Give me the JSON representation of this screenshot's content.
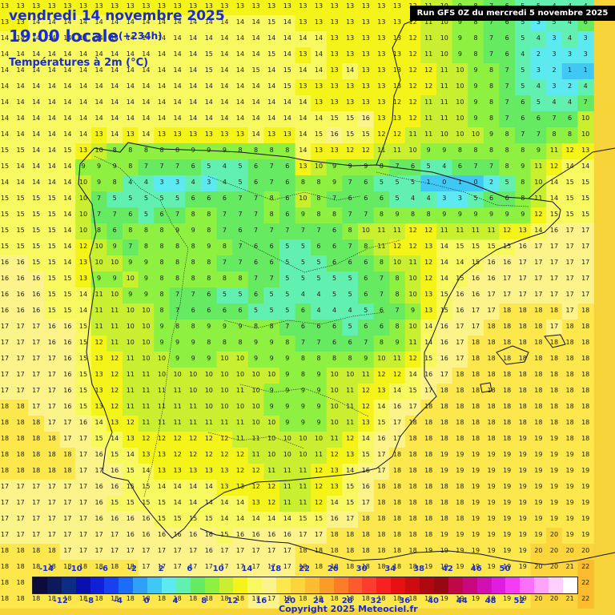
{
  "header": {
    "date": "vendredi 14 novembre 2025",
    "time": "19:00 locale",
    "lead": "(+234h)",
    "parameter": "Températures à 2m (°C)"
  },
  "run_label": "Run GFS 0Z du mercredi 5 novembre 2025",
  "credit": "Copyright 2025 Meteociel.fr",
  "units": "°C",
  "scale": {
    "upper_ticks": [
      "-14",
      "-10",
      "-6",
      "-2",
      "2",
      "6",
      "10",
      "14",
      "18",
      "22",
      "26",
      "30",
      "34",
      "38",
      "42",
      "46",
      "50"
    ],
    "lower_ticks": [
      "-12",
      "-8",
      "-4",
      "0",
      "4",
      "8",
      "12",
      "16",
      "20",
      "24",
      "28",
      "32",
      "36",
      "40",
      "44",
      "48",
      "52"
    ],
    "colors": [
      "#0c0c3c",
      "#0a1a5a",
      "#0c2c86",
      "#0a10b0",
      "#1020d8",
      "#1840f0",
      "#1c6cf8",
      "#2ea0f8",
      "#40c8f4",
      "#5ceaf0",
      "#62f0b0",
      "#66ea62",
      "#8ef040",
      "#c8f030",
      "#f4f41a",
      "#f8f860",
      "#fcf48a",
      "#fce84c",
      "#fcd43c",
      "#fcbc30",
      "#fc9c28",
      "#fc7c28",
      "#fc5c2c",
      "#fc3c2c",
      "#f82020",
      "#e81010",
      "#cc0c10",
      "#b00810",
      "#980810",
      "#c00848",
      "#c8087c",
      "#d010b0",
      "#e01ce0",
      "#f43cf4",
      "#fa70fa",
      "#fca4fc",
      "#ffd0ff",
      "#ffffff"
    ]
  },
  "temperature_grid": {
    "rows": [
      "13 13 13 13 13 13 13 13 13 13 13 13 13 13 13 13 13 13 13 13 13 13 13 13 13 13 12 11 10 9 8 7 6 5 5 4 4 4",
      "13 13 14 14 14 14 14 14 14 14 14 14 14 14 14 14 14 15 14 13 13 13 13 13 13 13 12 11 10 9 8 7 6 5 3 5 4 6",
      "14 14 14 14 14 14 14 14 14 14 14 14 14 14 14 14 14 14 14 14 14 13 13 13 13 13 12 11 10 9 8 7 6 5 4 3 4 3",
      "14 14 14 14 14 14 14 14 14 14 14 14 14 15 14 14 14 15 14 13 14 13 13 13 13 13 12 11 10 9 8 7 6 4 2 3 3 3",
      "14 14 14 14 14 14 14 14 14 14 14 14 14 15 14 14 15 14 15 14 14 13 14 13 13 13 12 12 11 10 9 8 7 5 3 2 1 1",
      "14 14 14 14 14 14 14 14 14 14 14 14 14 14 14 14 14 14 15 13 13 13 13 13 13 13 12 12 11 10 9 8 7 5 4 3 2 4",
      "14 14 14 14 14 14 14 14 14 14 14 14 14 14 14 14 14 14 14 14 13 13 13 13 13 12 12 11 11 10 9 8 7 6 5 4 4 7",
      "14 14 14 14 14 14 14 14 14 14 14 14 14 14 14 14 14 14 14 14 14 15 15 16 13 13 12 11 11 10 9 8 7 6 6 7 6 10",
      "14 14 14 14 14 14 13 14 13 14 13 13 13 13 13 13 14 13 13 14 15 16 15 15 12 12 11 11 10 10 10 9 8 7 7 8 8 10",
      "15 15 14 14 15 13 10 8 8 8 8 8 9 9 9 8 8 8 8 14 13 13 12 12 11 11 10 9 9 8 8 8 8 8 9 11 12 13",
      "15 14 14 14 14 9 9 9 8 7 7 7 6 5 4 5 6 7 6 13 10 9 9 9 8 7 6 5 4 6 7 7 8 9 11 12 14 14",
      "14 14 14 14 14 10 9 8 4 4 3 3 4 3 4 5 6 7 6 8 8 9 7 6 5 5 5 1 0 1 0 2 5 8 10 14 15 15",
      "15 15 15 15 14 10 7 5 5 5 5 5 6 6 6 7 7 8 6 10 8 7 6 6 6 5 4 4 3 3 5 6 6 8 11 14 15 15",
      "15 15 15 15 14 10 7 7 6 5 6 7 8 8 7 7 7 8 6 9 8 8 7 7 8 9 8 8 9 9 9 9 9 9 12 15 15 15",
      "15 15 15 15 14 10 8 6 8 8 8 9 9 8 7 6 7 7 7 7 7 6 8 10 11 11 12 12 11 11 11 11 12 13 14 16 17 17",
      "15 15 15 15 14 12 10 9 7 8 8 8 8 9 8 7 6 6 5 5 6 6 7 8 11 12 12 13 14 15 15 15 15 16 17 17 17 17",
      "16 16 15 15 14 13 10 10 9 9 8 8 8 8 7 7 6 6 5 5 5 6 6 6 8 10 11 12 14 14 15 16 16 17 17 17 17 17",
      "16 16 16 15 15 13 9 9 10 9 8 8 8 8 8 8 7 7 5 5 5 5 5 6 7 8 10 12 14 15 16 16 17 17 17 17 17 17",
      "16 16 16 15 15 14 11 10 9 9 8 7 7 6 5 5 6 5 5 4 4 5 5 6 7 8 10 13 15 16 16 17 17 17 17 17 17 17",
      "16 16 16 15 15 14 11 11 10 10 8 7 6 6 6 6 5 5 5 6 4 4 4 5 6 7 9 13 15 16 17 17 18 18 18 18 17 18",
      "17 17 17 16 16 15 11 11 10 10 9 8 8 9 9 9 8 8 7 6 6 6 5 6 6 8 10 14 16 17 17 18 18 18 18 17 18 18",
      "17 17 17 16 16 15 12 11 10 10 9 9 9 8 8 8 9 9 8 7 7 6 6 7 8 9 11 14 16 17 18 18 18 18 18 18 18 18",
      "17 17 17 17 16 15 13 12 11 10 10 9 9 9 10 10 9 9 9 8 8 8 8 9 10 11 12 15 16 17 18 18 18 18 18 18 18 18",
      "17 17 17 17 16 15 13 12 11 11 10 10 10 10 10 10 10 10 9 8 9 10 10 11 12 12 14 16 17 18 18 18 18 18 18 18 18 18",
      "17 17 17 17 16 15 13 12 11 11 11 11 10 10 10 11 10 9 9 9 9 10 11 12 13 14 15 17 18 18 18 18 18 18 18 18 18 18",
      "18 18 17 17 16 15 13 12 11 11 11 11 11 10 10 10 10 9 9 9 9 10 11 12 14 16 17 18 18 18 18 18 18 18 18 18 18 18",
      "18 18 18 17 17 16 14 13 12 11 11 11 11 11 11 11 10 10 9 9 9 10 11 13 15 17 18 18 18 18 18 18 18 18 18 18 18 18",
      "18 18 18 18 17 17 15 14 13 12 12 12 12 12 12 11 11 10 10 10 10 11 12 14 16 17 18 18 18 18 18 18 18 19 19 19 18 18",
      "18 18 18 18 18 17 16 15 14 13 13 12 12 12 12 12 11 10 10 10 11 12 13 15 17 18 18 18 19 19 19 19 19 19 19 19 19 18",
      "18 18 18 18 18 17 17 16 15 14 13 13 13 13 13 12 12 11 11 11 12 13 14 16 17 18 18 18 19 19 19 19 19 19 19 19 19 19",
      "17 17 17 17 17 17 16 16 15 15 14 14 14 14 13 13 12 12 11 11 12 13 15 16 18 18 18 18 18 18 19 19 19 19 19 19 19 19",
      "17 17 17 17 17 17 16 15 15 15 15 14 14 14 14 14 13 12 11 11 12 14 15 17 18 18 18 18 18 18 19 19 19 19 19 19 19 19",
      "17 17 17 17 17 17 16 16 16 16 15 15 15 15 14 14 14 14 14 15 15 16 17 18 18 18 18 18 18 18 19 19 19 19 19 19 19 19",
      "17 17 17 17 17 17 17 17 16 16 16 16 16 16 15 16 16 16 16 17 17 18 18 18 18 18 18 18 19 19 19 19 19 19 19 20 19 19",
      "18 18 18 18 17 17 17 17 17 17 17 17 17 16 17 17 17 17 17 18 18 18 18 18 18 18 18 19 19 19 19 19 19 19 20 20 20 20",
      "18 18 18 18 18 18 18 18 18 17 17 17 17 17 17 17 17 17 17 18 18 18 18 18 18 18 18 19 19 19 19 19 19 19 20 20 21 22",
      "18 18 18 18 18 18 18 18 18 18 18 18 18 18 18 18 17 17 18 18 18 18 18 18 18 18 18 19 19 19 19 19 19 19 20 20 21 22",
      "18 18 18 18 18 18 18 18 18 18 18 18 18 18 18 18 17 17 18 18 18 18 18 18 18 18 18 19 19 19 19 19 19 19 20 20 21 22"
    ]
  }
}
